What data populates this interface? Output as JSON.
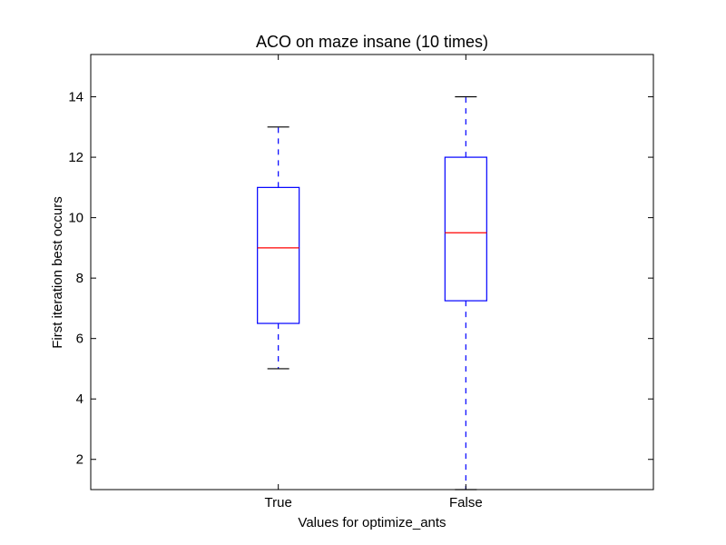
{
  "chart_data": {
    "type": "box",
    "title": "ACO on maze insane (10 times)",
    "xlabel": "Values for optimize_ants",
    "ylabel": "First iteration best occurs",
    "categories": [
      "True",
      "False"
    ],
    "boxes": [
      {
        "label": "True",
        "whisker_low": 5,
        "q1": 6.5,
        "median": 9,
        "q3": 11,
        "whisker_high": 13
      },
      {
        "label": "False",
        "whisker_low": 1,
        "q1": 7.25,
        "median": 9.5,
        "q3": 12,
        "whisker_high": 14
      }
    ],
    "ylim": [
      1,
      15.4
    ],
    "yticks": [
      2,
      4,
      6,
      8,
      10,
      12,
      14
    ],
    "grid": false,
    "colors": {
      "box": "#0000ff",
      "median": "#ff0000",
      "cap": "#000000",
      "whisker": "#0000ff"
    }
  }
}
